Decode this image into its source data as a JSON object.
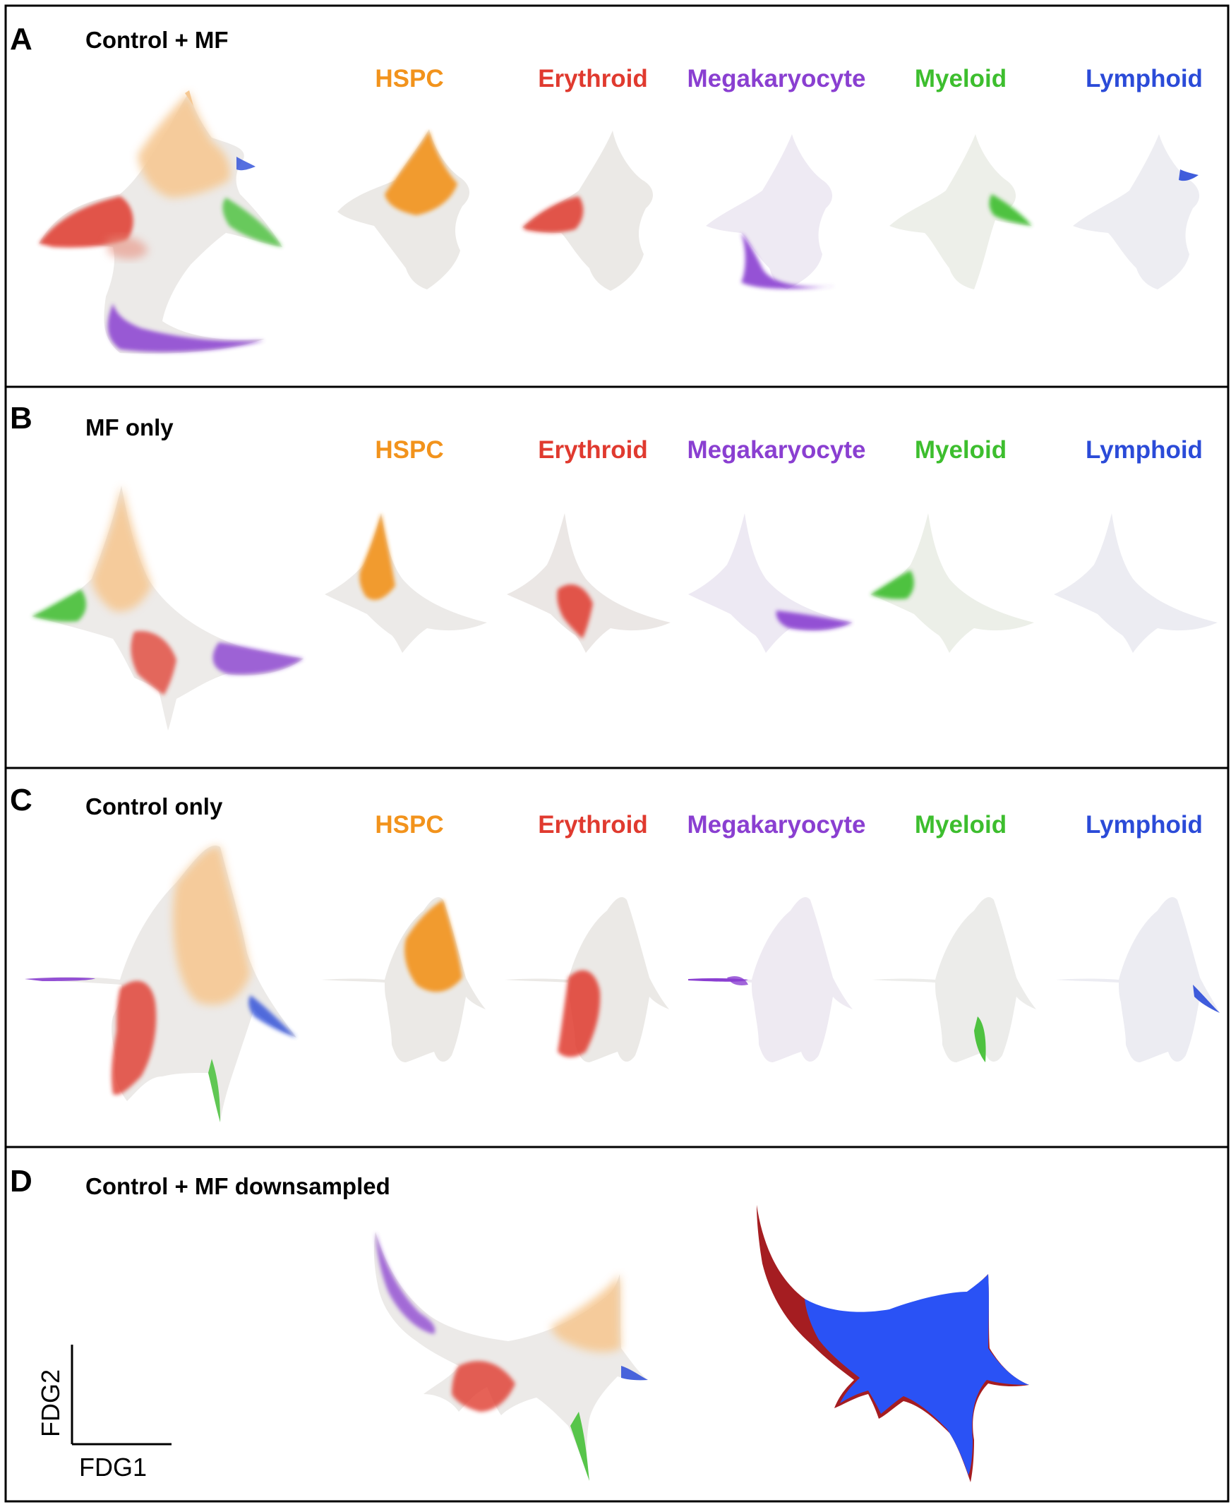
{
  "colors": {
    "HSPC": "#F2931C",
    "Erythroid": "#E03A2F",
    "Megakaryocyte": "#8A3FD1",
    "Myeloid": "#3DBE2E",
    "Lymphoid": "#2B4BD8",
    "background": "#E6E4E2",
    "hspc_pale": "#F6C893",
    "dataset_control": "#2A52F5",
    "dataset_mf": "#A51D21"
  },
  "lineages": [
    "HSPC",
    "Erythroid",
    "Megakaryocyte",
    "Myeloid",
    "Lymphoid"
  ],
  "panels": [
    {
      "letter": "A",
      "title": "Control + MF"
    },
    {
      "letter": "B",
      "title": "MF only"
    },
    {
      "letter": "C",
      "title": "Control only"
    },
    {
      "letter": "D",
      "title": "Control + MF downsampled"
    }
  ],
  "axes": {
    "x_label": "FDG1",
    "y_label": "FDG2"
  }
}
